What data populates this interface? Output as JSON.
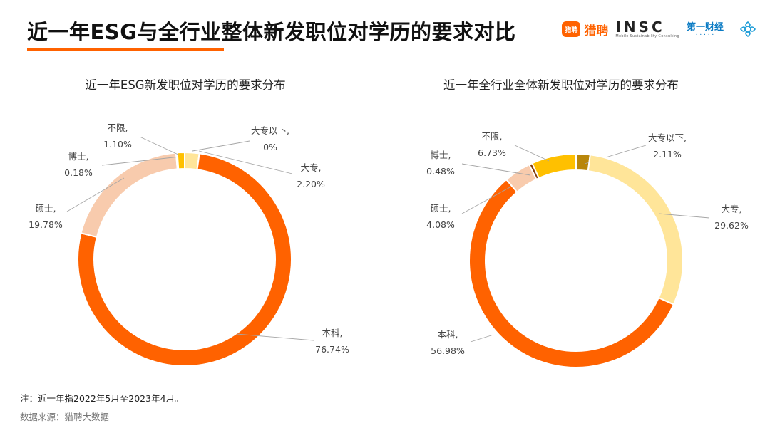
{
  "header": {
    "title": "近一年ESG与全行业整体新发职位对学历的要求对比",
    "logos": {
      "liepin": "猎聘",
      "liepin_mark": "猎聘",
      "insc": "INSC",
      "insc_sub": "Mobile Sustainability Consulting",
      "cbn": "第一财经"
    }
  },
  "colors": {
    "accent": "#FF6200",
    "dazhuan_yixia": "#B8860B",
    "dazhuan": "#FFE599",
    "benke": "#FF6200",
    "shuoshi": "#F8CBAD",
    "boshi": "#843C0C",
    "buxian": "#FFC000"
  },
  "chart_data": [
    {
      "type": "pie",
      "title": "近一年ESG新发职位对学历的要求分布",
      "slices": [
        {
          "name": "大专以下,",
          "value_label": "0%",
          "value": 0,
          "color": "#B8860B"
        },
        {
          "name": "大专,",
          "value_label": "2.20%",
          "value": 2.2,
          "color": "#FFE599"
        },
        {
          "name": "本科,",
          "value_label": "76.74%",
          "value": 76.74,
          "color": "#FF6200"
        },
        {
          "name": "硕士,",
          "value_label": "19.78%",
          "value": 19.78,
          "color": "#F8CBAD"
        },
        {
          "name": "博士,",
          "value_label": "0.18%",
          "value": 0.18,
          "color": "#843C0C"
        },
        {
          "name": "不限,",
          "value_label": "1.10%",
          "value": 1.1,
          "color": "#FFC000"
        }
      ]
    },
    {
      "type": "pie",
      "title": "近一年全行业全体新发职位对学历的要求分布",
      "slices": [
        {
          "name": "大专以下,",
          "value_label": "2.11%",
          "value": 2.11,
          "color": "#B8860B"
        },
        {
          "name": "大专,",
          "value_label": "29.62%",
          "value": 29.62,
          "color": "#FFE599"
        },
        {
          "name": "本科,",
          "value_label": "56.98%",
          "value": 56.98,
          "color": "#FF6200"
        },
        {
          "name": "硕士,",
          "value_label": "4.08%",
          "value": 4.08,
          "color": "#F8CBAD"
        },
        {
          "name": "博士,",
          "value_label": "0.48%",
          "value": 0.48,
          "color": "#843C0C"
        },
        {
          "name": "不限,",
          "value_label": "6.73%",
          "value": 6.73,
          "color": "#FFC000"
        }
      ]
    }
  ],
  "footer": {
    "note": "注：近一年指2022年5月至2023年4月。",
    "source": "数据来源：猎聘大数据"
  }
}
